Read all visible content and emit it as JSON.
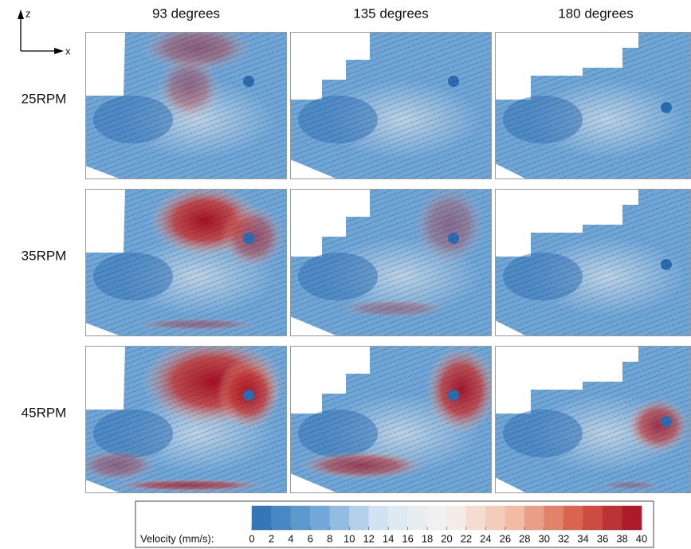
{
  "axes_indicator": {
    "vertical": "z",
    "horizontal": "x"
  },
  "columns": [
    "93 degrees",
    "135 degrees",
    "180 degrees"
  ],
  "rows": [
    "25RPM",
    "35RPM",
    "45RPM"
  ],
  "colorbar": {
    "label": "Velocity (mm/s):",
    "lim": [
      0,
      40
    ],
    "ticks": [
      0,
      2,
      4,
      6,
      8,
      10,
      12,
      14,
      16,
      18,
      20,
      22,
      24,
      26,
      28,
      30,
      32,
      34,
      36,
      38,
      40
    ],
    "colormap": [
      "#2b6db3",
      "#6ea6d8",
      "#d6e6f2",
      "#f5f2f0",
      "#f2c1a8",
      "#d9604a",
      "#a50f25"
    ]
  }
}
